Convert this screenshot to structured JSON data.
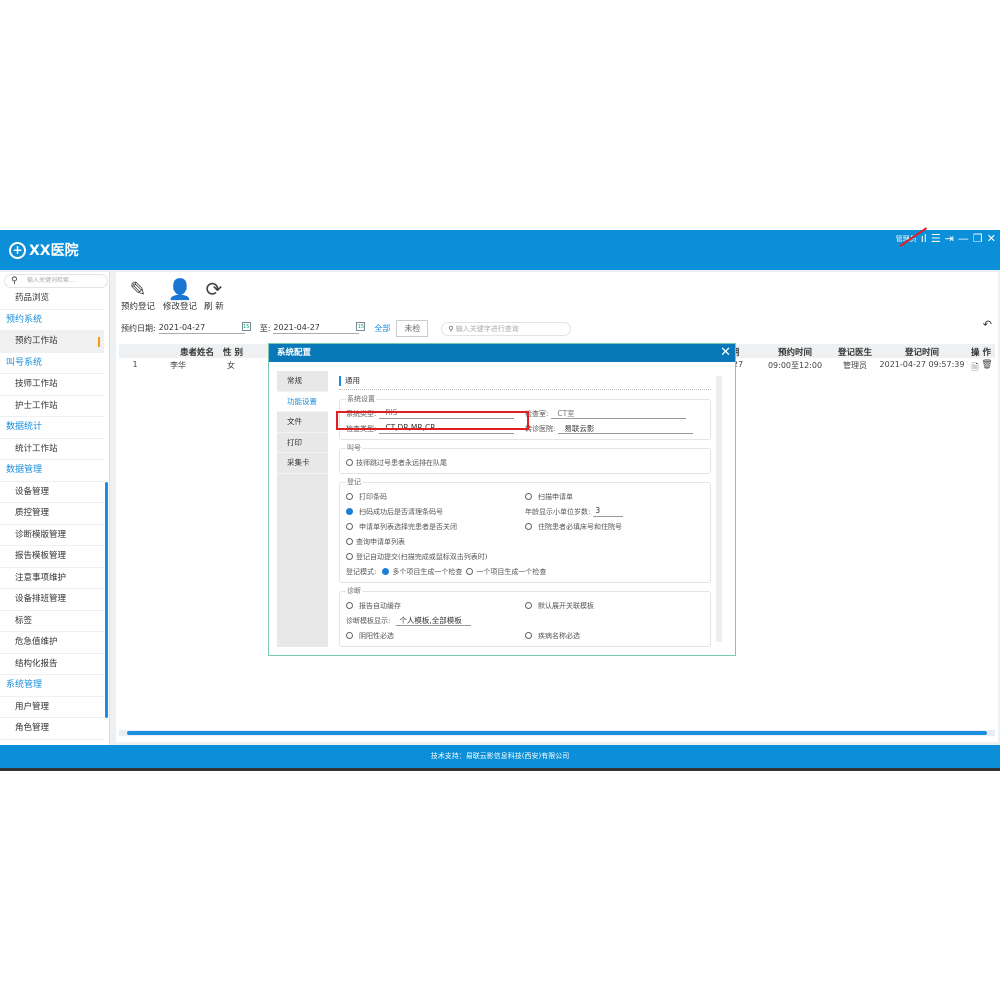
{
  "header": {
    "title": "XX医院",
    "user": "管理员"
  },
  "sidebar": {
    "search_placeholder": "输入关键词检索...",
    "items": [
      {
        "label": "药品浏览",
        "type": "item"
      },
      {
        "label": "预约系统",
        "type": "group"
      },
      {
        "label": "预约工作站",
        "type": "item",
        "active": true
      },
      {
        "label": "叫号系统",
        "type": "group"
      },
      {
        "label": "技师工作站",
        "type": "item"
      },
      {
        "label": "护士工作站",
        "type": "item"
      },
      {
        "label": "数据统计",
        "type": "group"
      },
      {
        "label": "统计工作站",
        "type": "item"
      },
      {
        "label": "数据管理",
        "type": "group"
      },
      {
        "label": "设备管理",
        "type": "item"
      },
      {
        "label": "质控管理",
        "type": "item"
      },
      {
        "label": "诊断模版管理",
        "type": "item"
      },
      {
        "label": "报告模板管理",
        "type": "item"
      },
      {
        "label": "注意事项维护",
        "type": "item"
      },
      {
        "label": "设备排班管理",
        "type": "item"
      },
      {
        "label": "标签",
        "type": "item"
      },
      {
        "label": "危急值维护",
        "type": "item"
      },
      {
        "label": "结构化报告",
        "type": "item"
      },
      {
        "label": "系统管理",
        "type": "group"
      },
      {
        "label": "用户管理",
        "type": "item"
      },
      {
        "label": "角色管理",
        "type": "item"
      }
    ]
  },
  "toolbar": {
    "add": "预约登记",
    "edit": "修改登记",
    "refresh": "刷 新"
  },
  "filter": {
    "date_label": "预约日期:",
    "from": "2021-04-27",
    "to_label": "至:",
    "to": "2021-04-27",
    "all": "全部",
    "unchecked": "未检",
    "search_placeholder": "输入关键字进行查询"
  },
  "table": {
    "headers": {
      "name": "患者姓名",
      "sex": "性 别",
      "date": "期",
      "time": "预约时间",
      "doctor": "登记医生",
      "regtime": "登记时间",
      "ops": "操 作"
    },
    "rows": [
      {
        "no": "1",
        "name": "李华",
        "sex": "女",
        "date": "27",
        "time": "09:00至12:00",
        "doctor": "管理员",
        "regtime": "2021-04-27 09:57:39"
      }
    ]
  },
  "modal": {
    "title": "系统配置",
    "tabs": [
      "常规",
      "功能设置",
      "文件",
      "打印",
      "采集卡"
    ],
    "active_tab": "功能设置",
    "section": "通用",
    "sys": {
      "legend": "系统设置",
      "type_label": "系统类型:",
      "type": "RIS",
      "room_label": "检查室:",
      "room": "CT室",
      "exam_label": "检查类型:",
      "exam": "CT,DR,MR,CR",
      "hosp_label": "转诊医院:",
      "hosp": "易联云影"
    },
    "call": {
      "legend": "叫号",
      "opt1": "技师跳过号患者永远排在队尾"
    },
    "reg": {
      "legend": "登记",
      "print": "打印条码",
      "scan": "扫描申请单",
      "clear": "扫码成功后是否清理条码号",
      "age_label": "年龄显示小单位岁数:",
      "age": "3",
      "close": "申请单列表选择完患者是否关闭",
      "inpatient": "住院患者必填床号和住院号",
      "query": "查询申请单列表",
      "auto": "登记自动提交(扫描完成或鼠标双击列表时)",
      "mode_label": "登记模式:",
      "mode1": "多个项目生成一个检查",
      "mode2": "一个项目生成一个检查"
    },
    "diag": {
      "legend": "诊断",
      "autosave": "报告自动缓存",
      "expand": "默认展开关联模板",
      "tpl_label": "诊断模板显示:",
      "tpl": "个人模板,全部模板",
      "posneg": "阴阳性必选",
      "disease": "疾病名称必选"
    }
  },
  "footer": "技术支持：易联云影信息科技(西安)有限公司",
  "colors": {
    "brand": "#0a8fd8",
    "modal_title": "#0878b8",
    "highlight": "#e02020"
  }
}
